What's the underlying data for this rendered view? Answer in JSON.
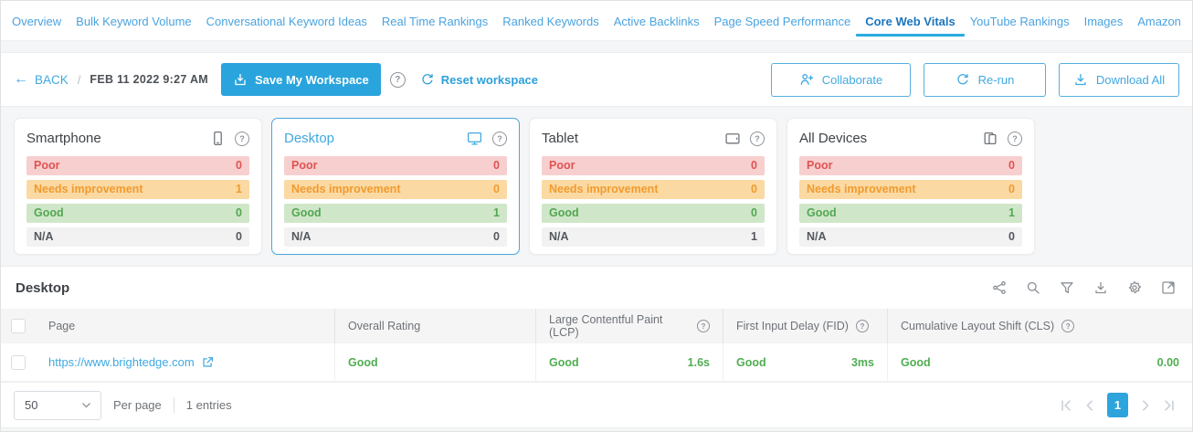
{
  "nav": {
    "tabs": [
      {
        "label": "Overview",
        "active": false
      },
      {
        "label": "Bulk Keyword Volume",
        "active": false
      },
      {
        "label": "Conversational Keyword Ideas",
        "active": false
      },
      {
        "label": "Real Time Rankings",
        "active": false
      },
      {
        "label": "Ranked Keywords",
        "active": false
      },
      {
        "label": "Active Backlinks",
        "active": false
      },
      {
        "label": "Page Speed Performance",
        "active": false
      },
      {
        "label": "Core Web Vitals",
        "active": true
      },
      {
        "label": "YouTube Rankings",
        "active": false
      },
      {
        "label": "Images",
        "active": false
      },
      {
        "label": "Amazon",
        "active": false
      }
    ]
  },
  "toolbar": {
    "back_label": "BACK",
    "breadcrumb_separator": "/",
    "timestamp": "FEB 11 2022 9:27 AM",
    "save_button_label": "Save My Workspace",
    "reset_button_label": "Reset workspace",
    "collaborate_button_label": "Collaborate",
    "rerun_button_label": "Re-run",
    "download_all_button_label": "Download All"
  },
  "device_cards": [
    {
      "title": "Smartphone",
      "icon": "smartphone-icon",
      "selected": false,
      "stats": [
        {
          "label": "Poor",
          "value": "0",
          "status": "poor"
        },
        {
          "label": "Needs improvement",
          "value": "1",
          "status": "needs-improvement"
        },
        {
          "label": "Good",
          "value": "0",
          "status": "good"
        },
        {
          "label": "N/A",
          "value": "0",
          "status": "na"
        }
      ]
    },
    {
      "title": "Desktop",
      "icon": "desktop-icon",
      "selected": true,
      "stats": [
        {
          "label": "Poor",
          "value": "0",
          "status": "poor"
        },
        {
          "label": "Needs improvement",
          "value": "0",
          "status": "needs-improvement"
        },
        {
          "label": "Good",
          "value": "1",
          "status": "good"
        },
        {
          "label": "N/A",
          "value": "0",
          "status": "na"
        }
      ]
    },
    {
      "title": "Tablet",
      "icon": "tablet-icon",
      "selected": false,
      "stats": [
        {
          "label": "Poor",
          "value": "0",
          "status": "poor"
        },
        {
          "label": "Needs improvement",
          "value": "0",
          "status": "needs-improvement"
        },
        {
          "label": "Good",
          "value": "0",
          "status": "good"
        },
        {
          "label": "N/A",
          "value": "1",
          "status": "na"
        }
      ]
    },
    {
      "title": "All Devices",
      "icon": "all-devices-icon",
      "selected": false,
      "stats": [
        {
          "label": "Poor",
          "value": "0",
          "status": "poor"
        },
        {
          "label": "Needs improvement",
          "value": "0",
          "status": "needs-improvement"
        },
        {
          "label": "Good",
          "value": "1",
          "status": "good"
        },
        {
          "label": "N/A",
          "value": "0",
          "status": "na"
        }
      ]
    }
  ],
  "table": {
    "title": "Desktop",
    "toolbar_icons": [
      "share-icon",
      "search-icon",
      "filter-icon",
      "download-icon",
      "settings-icon",
      "expand-icon"
    ],
    "columns": [
      {
        "label": "Page",
        "info": false,
        "class": "col-page"
      },
      {
        "label": "Overall Rating",
        "info": false,
        "class": "col-overall"
      },
      {
        "label": "Large Contentful Paint (LCP)",
        "info": true,
        "class": "col-lcp"
      },
      {
        "label": "First Input Delay (FID)",
        "info": true,
        "class": "col-fid"
      },
      {
        "label": "Cumulative Layout Shift (CLS)",
        "info": true,
        "class": "col-cls"
      }
    ],
    "rows": [
      {
        "page": "https://www.brightedge.com",
        "overall_rating": "Good",
        "lcp": {
          "rating": "Good",
          "value": "1.6s"
        },
        "fid": {
          "rating": "Good",
          "value": "3ms"
        },
        "cls": {
          "rating": "Good",
          "value": "0.00"
        }
      }
    ],
    "footer": {
      "per_page_value": "50",
      "per_page_label": "Per page",
      "entries_label": "1 entries",
      "current_page": "1"
    }
  },
  "icons": {
    "back-arrow-icon": "left-arrow",
    "save-icon": "import-tray",
    "help-icon": "question-circle",
    "refresh-icon": "circular-arrow",
    "person-plus-icon": "person-plus",
    "download-icon": "arrow-down-tray",
    "smartphone-icon": "phone-outline",
    "desktop-icon": "monitor-outline",
    "tablet-icon": "tablet-outline",
    "all-devices-icon": "stacked-devices",
    "share-icon": "share-nodes",
    "search-icon": "magnifier",
    "filter-icon": "funnel",
    "settings-icon": "gear",
    "expand-icon": "expand-diagonal-arrow",
    "external-link-icon": "box-with-arrow",
    "chevron-down-icon": "chevron-down",
    "page-first-icon": "bar-chevron-left",
    "page-prev-icon": "chevron-left",
    "page-next-icon": "chevron-right",
    "page-last-icon": "bar-chevron-right"
  },
  "colors": {
    "tab_blue": "#4aa3df",
    "active_tab_blue": "#1b75bc",
    "active_tab_underline": "#29abe2",
    "primary_button_blue": "#29a4dd",
    "link_blue": "#3fa9e0",
    "good_green": "#53a653",
    "poor_red": "#e05353",
    "warning_orange": "#f09b2f",
    "pagination_active_blue": "#2da4dc"
  }
}
